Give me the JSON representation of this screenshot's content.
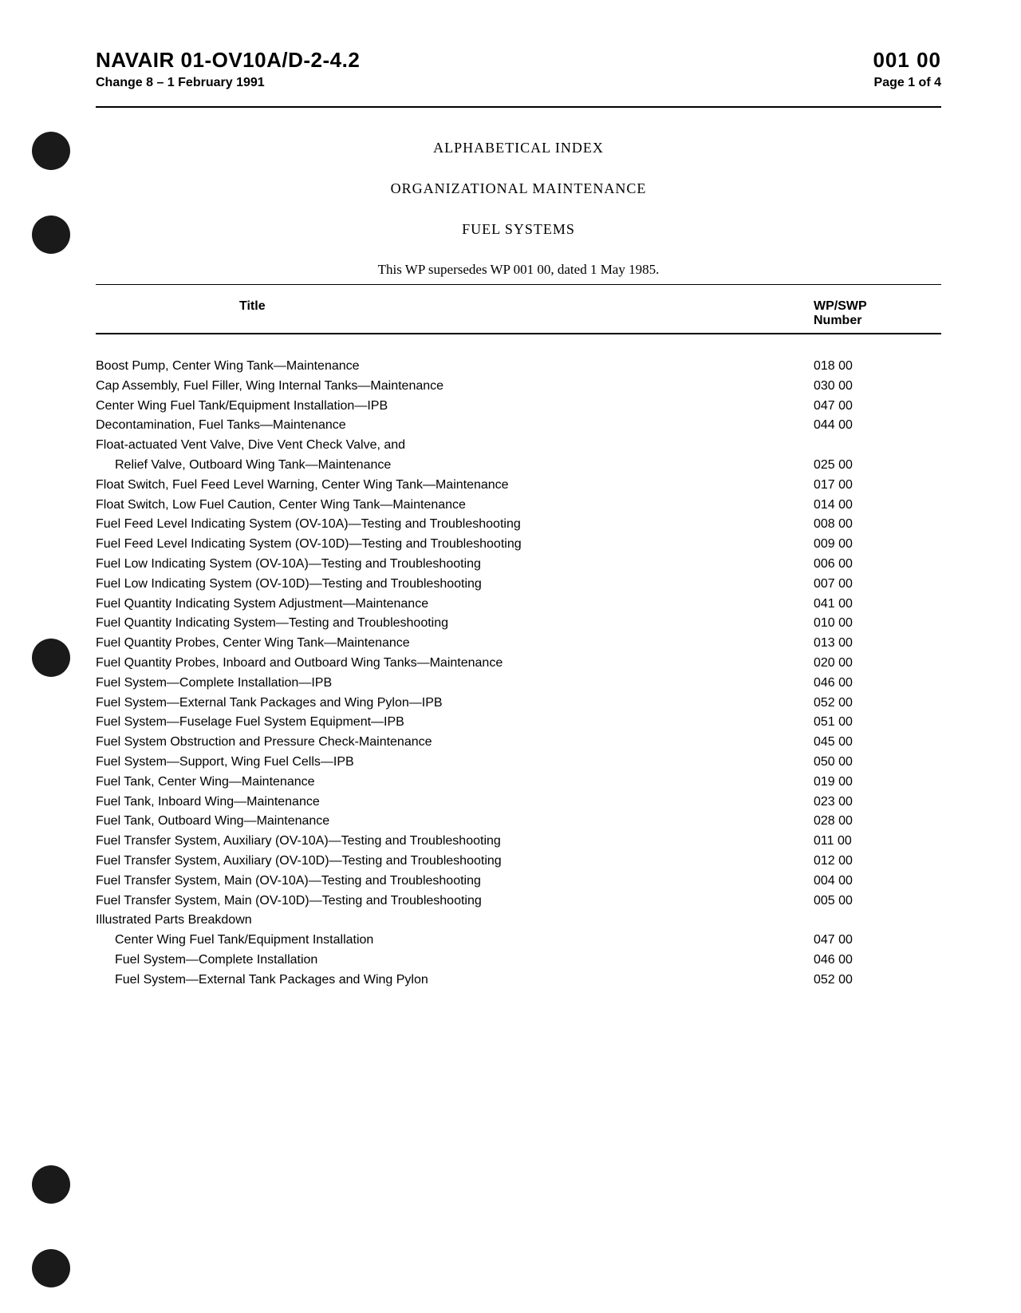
{
  "header": {
    "doc_id": "NAVAIR 01-OV10A/D-2-4.2",
    "wp_number": "001 00",
    "change": "Change 8 – 1 February 1991",
    "page_info": "Page 1 of 4"
  },
  "titles": {
    "main": "ALPHABETICAL INDEX",
    "sub": "ORGANIZATIONAL MAINTENANCE",
    "subject": "FUEL SYSTEMS",
    "supersedes": "This WP supersedes WP 001 00, dated 1 May 1985."
  },
  "table_headers": {
    "title": "Title",
    "number": "WP/SWP Number"
  },
  "index_entries": [
    {
      "title": "Boost Pump, Center Wing Tank—Maintenance",
      "number": "018 00",
      "indent": false
    },
    {
      "title": "Cap Assembly, Fuel Filler, Wing Internal Tanks—Maintenance",
      "number": "030 00",
      "indent": false
    },
    {
      "title": "Center Wing Fuel Tank/Equipment Installation—IPB",
      "number": "047 00",
      "indent": false
    },
    {
      "title": "Decontamination, Fuel Tanks—Maintenance",
      "number": "044 00",
      "indent": false
    },
    {
      "title": "Float-actuated Vent Valve, Dive Vent Check Valve, and",
      "number": "",
      "indent": false
    },
    {
      "title": "Relief Valve, Outboard Wing Tank—Maintenance",
      "number": "025 00",
      "indent": true
    },
    {
      "title": "Float Switch, Fuel Feed Level Warning, Center Wing Tank—Maintenance",
      "number": "017 00",
      "indent": false
    },
    {
      "title": "Float Switch, Low Fuel Caution, Center Wing Tank—Maintenance",
      "number": "014 00",
      "indent": false
    },
    {
      "title": "Fuel Feed Level Indicating System (OV-10A)—Testing and Troubleshooting",
      "number": "008 00",
      "indent": false
    },
    {
      "title": "Fuel Feed Level Indicating System (OV-10D)—Testing and Troubleshooting",
      "number": "009 00",
      "indent": false
    },
    {
      "title": "Fuel Low Indicating System (OV-10A)—Testing and Troubleshooting",
      "number": "006 00",
      "indent": false
    },
    {
      "title": "Fuel Low Indicating System (OV-10D)—Testing and Troubleshooting",
      "number": "007 00",
      "indent": false
    },
    {
      "title": "Fuel Quantity Indicating System Adjustment—Maintenance",
      "number": "041 00",
      "indent": false
    },
    {
      "title": "Fuel Quantity Indicating System—Testing and Troubleshooting",
      "number": "010 00",
      "indent": false
    },
    {
      "title": "Fuel Quantity Probes, Center Wing Tank—Maintenance",
      "number": "013 00",
      "indent": false
    },
    {
      "title": "Fuel Quantity Probes, Inboard and Outboard Wing Tanks—Maintenance",
      "number": "020 00",
      "indent": false
    },
    {
      "title": "Fuel System—Complete Installation—IPB",
      "number": "046 00",
      "indent": false
    },
    {
      "title": "Fuel System—External Tank Packages and Wing Pylon—IPB",
      "number": "052 00",
      "indent": false
    },
    {
      "title": "Fuel System—Fuselage Fuel System Equipment—IPB",
      "number": "051 00",
      "indent": false
    },
    {
      "title": "Fuel System Obstruction and Pressure Check-Maintenance",
      "number": "045 00",
      "indent": false
    },
    {
      "title": "Fuel System—Support, Wing Fuel Cells—IPB",
      "number": "050 00",
      "indent": false
    },
    {
      "title": "Fuel Tank, Center Wing—Maintenance",
      "number": "019 00",
      "indent": false
    },
    {
      "title": "Fuel Tank, Inboard Wing—Maintenance",
      "number": "023 00",
      "indent": false
    },
    {
      "title": "Fuel Tank, Outboard Wing—Maintenance",
      "number": "028 00",
      "indent": false
    },
    {
      "title": "Fuel Transfer System, Auxiliary (OV-10A)—Testing and Troubleshooting",
      "number": "011 00",
      "indent": false
    },
    {
      "title": "Fuel Transfer System, Auxiliary (OV-10D)—Testing and Troubleshooting",
      "number": "012 00",
      "indent": false
    },
    {
      "title": "Fuel Transfer System, Main (OV-10A)—Testing and Troubleshooting",
      "number": "004 00",
      "indent": false
    },
    {
      "title": "Fuel Transfer System, Main (OV-10D)—Testing and Troubleshooting",
      "number": "005 00",
      "indent": false
    },
    {
      "title": "Illustrated Parts Breakdown",
      "number": "",
      "indent": false
    },
    {
      "title": "Center Wing Fuel Tank/Equipment Installation",
      "number": "047 00",
      "indent": true
    },
    {
      "title": "Fuel System—Complete Installation",
      "number": "046 00",
      "indent": true
    },
    {
      "title": "Fuel System—External Tank Packages and Wing Pylon",
      "number": "052 00",
      "indent": true
    }
  ]
}
